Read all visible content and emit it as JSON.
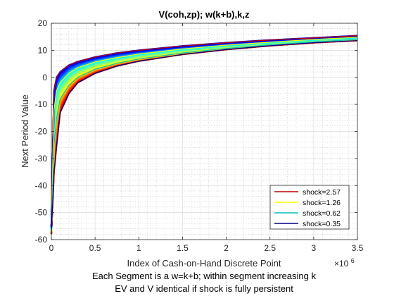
{
  "chart_data": {
    "type": "line",
    "title": "V(coh,zp); w(k+b),k,z",
    "xlabel": "Index of Cash-on-Hand Discrete Point",
    "ylabel": "Next Period Value",
    "notes": [
      "Each Segment is a w=k+b; within segment increasing k",
      "EV and V identical if shock is fully persistent"
    ],
    "x_exponent_label": "×10",
    "x_exponent_power": "6",
    "x_scale": 1000000,
    "xlim": [
      0,
      3500000
    ],
    "ylim": [
      -60,
      20
    ],
    "x_ticks": [
      0,
      0.5,
      1,
      1.5,
      2,
      2.5,
      3,
      3.5
    ],
    "x_tick_labels": [
      "0",
      "0.5",
      "1",
      "1.5",
      "2",
      "2.5",
      "3",
      "3.5"
    ],
    "y_ticks": [
      20,
      10,
      0,
      -10,
      -20,
      -30,
      -40,
      -50,
      -60
    ],
    "y_tick_labels": [
      "20",
      "10",
      "0",
      "-10",
      "-20",
      "-30",
      "-40",
      "-50",
      "-60"
    ],
    "grid": "on",
    "legend_position": "bottom-right",
    "x": [
      0,
      30000,
      60000,
      100000,
      200000,
      300000,
      500000,
      750000,
      1000000,
      1500000,
      2000000,
      2500000,
      3000000,
      3500000
    ],
    "series": [
      {
        "name": "shock=2.57",
        "color": "#c00000",
        "values": [
          -55,
          -5,
          0,
          2,
          4.5,
          5.8,
          7.5,
          9,
          10,
          11.6,
          12.8,
          13.8,
          14.6,
          15.4
        ]
      },
      {
        "name": "shock=1.26",
        "color": "#ffff00",
        "values": [
          -56,
          -12,
          -5,
          -2,
          1.5,
          3.5,
          5.7,
          7.3,
          8.6,
          10.5,
          11.9,
          13,
          14,
          14.8
        ]
      },
      {
        "name": "shock=0.62",
        "color": "#00c0c0",
        "values": [
          -57,
          -25,
          -15,
          -8,
          -3,
          0,
          3,
          5.2,
          6.8,
          9,
          10.7,
          12,
          13.1,
          14
        ]
      },
      {
        "name": "shock=0.35",
        "color": "#000080",
        "values": [
          -58,
          -35,
          -25,
          -13,
          -6,
          -2,
          1.5,
          4.2,
          6,
          8.5,
          10.3,
          11.7,
          12.8,
          13.6
        ]
      }
    ]
  }
}
